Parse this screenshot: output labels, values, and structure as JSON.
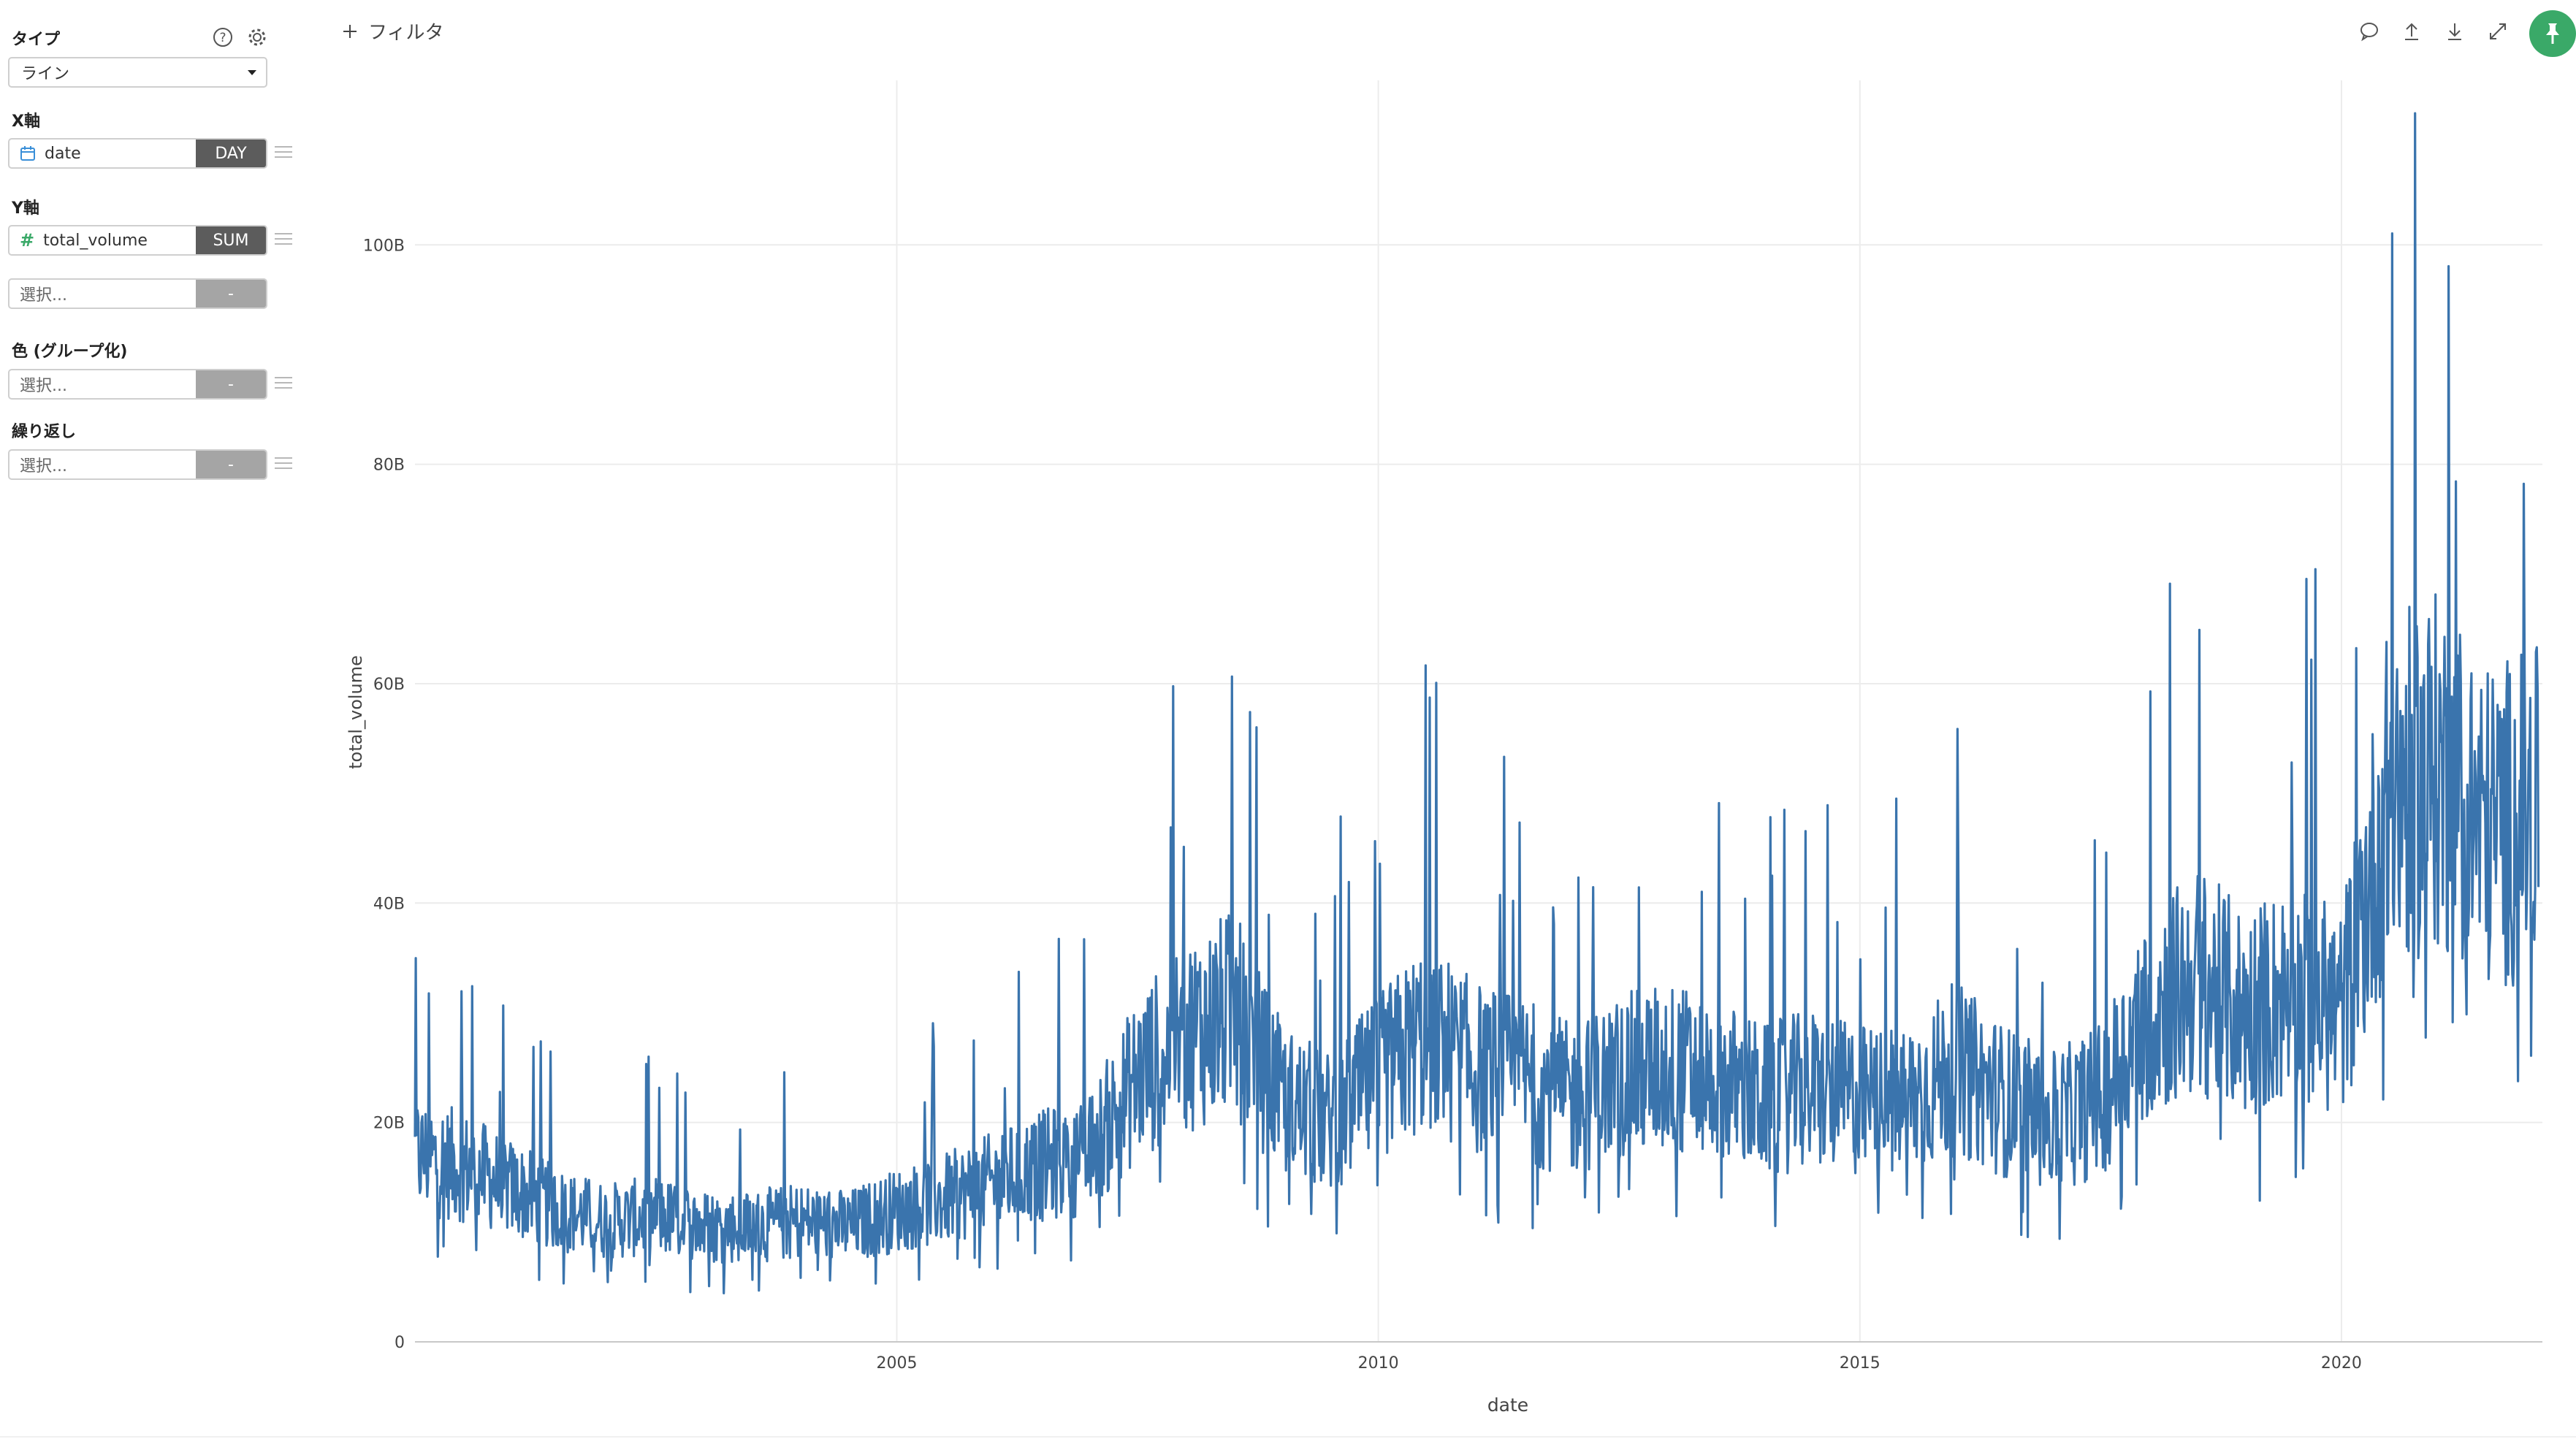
{
  "sidebar": {
    "type": {
      "label": "タイプ",
      "value": "ライン"
    },
    "x_axis": {
      "label": "X軸",
      "field": "date",
      "agg": "DAY"
    },
    "y_axis": {
      "label": "Y軸",
      "field": "total_volume",
      "agg": "SUM",
      "extra_placeholder": "選択...",
      "extra_agg": "-"
    },
    "color": {
      "label": "色 (グループ化)",
      "placeholder": "選択...",
      "agg": "-"
    },
    "repeat": {
      "label": "繰り返し",
      "placeholder": "選択...",
      "agg": "-"
    }
  },
  "toolbar": {
    "filter_label": "フィルタ",
    "icons": [
      "comment-icon",
      "upload-icon",
      "download-icon",
      "expand-icon",
      "pin-icon"
    ]
  },
  "colors": {
    "series": "#3a74ad",
    "accent": "#3aa968",
    "grid": "#ececec"
  },
  "chart_data": {
    "type": "line",
    "title": "",
    "xlabel": "date",
    "ylabel": "total_volume",
    "x_ticks": [
      "2005",
      "2010",
      "2015",
      "2020"
    ],
    "y_ticks": [
      "0",
      "20B",
      "40B",
      "60B",
      "80B",
      "100B"
    ],
    "xlim": [
      "2000-01-01",
      "2022-02-01"
    ],
    "ylim": [
      0,
      115000000000
    ],
    "grid": true,
    "series": [
      {
        "x": [
          "2000-01",
          "2000-07",
          "2001-01",
          "2001-07",
          "2002-01",
          "2002-07",
          "2003-01",
          "2003-07",
          "2004-01",
          "2004-07",
          "2005-01",
          "2005-07",
          "2006-01",
          "2006-07",
          "2007-01",
          "2007-07",
          "2008-01",
          "2008-07",
          "2009-01",
          "2009-07",
          "2010-01",
          "2010-07",
          "2011-01",
          "2011-07",
          "2012-01",
          "2012-07",
          "2013-01",
          "2013-07",
          "2014-01",
          "2014-07",
          "2015-01",
          "2015-07",
          "2016-01",
          "2016-07",
          "2017-01",
          "2017-07",
          "2018-01",
          "2018-07",
          "2019-01",
          "2019-07",
          "2020-01",
          "2020-07",
          "2021-01",
          "2021-07",
          "2022-01"
        ],
        "y": [
          17000000000,
          16000000000,
          14000000000,
          12000000000,
          11000000000,
          11500000000,
          10500000000,
          10500000000,
          11000000000,
          10500000000,
          12000000000,
          13000000000,
          14500000000,
          16000000000,
          17000000000,
          24000000000,
          28000000000,
          30000000000,
          22000000000,
          20000000000,
          24000000000,
          28000000000,
          25000000000,
          24000000000,
          22000000000,
          24000000000,
          25000000000,
          24000000000,
          22000000000,
          23000000000,
          22000000000,
          22000000000,
          25000000000,
          22000000000,
          20000000000,
          22000000000,
          30000000000,
          33000000000,
          30000000000,
          32000000000,
          30000000000,
          50000000000,
          52000000000,
          47000000000,
          48000000000
        ]
      }
    ]
  }
}
